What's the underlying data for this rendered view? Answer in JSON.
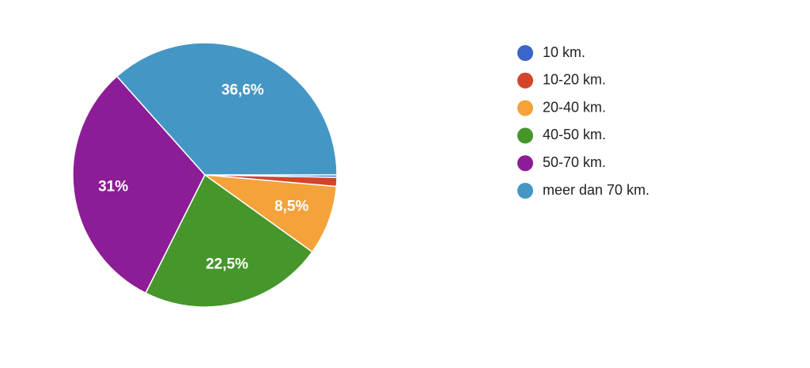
{
  "chart_data": {
    "type": "pie",
    "categories": [
      "10 km.",
      "10-20 km.",
      "20-40 km.",
      "40-50 km.",
      "50-70 km.",
      "meer dan 70 km."
    ],
    "values": [
      0.3,
      1.1,
      8.5,
      22.5,
      31,
      36.6
    ],
    "value_labels": [
      null,
      null,
      "8,5%",
      "22,5%",
      "31%",
      "36,6%"
    ],
    "colors": [
      "#3a65c9",
      "#d2452b",
      "#f4a23a",
      "#46962b",
      "#8c1d96",
      "#4497c4"
    ],
    "legend": "right"
  }
}
